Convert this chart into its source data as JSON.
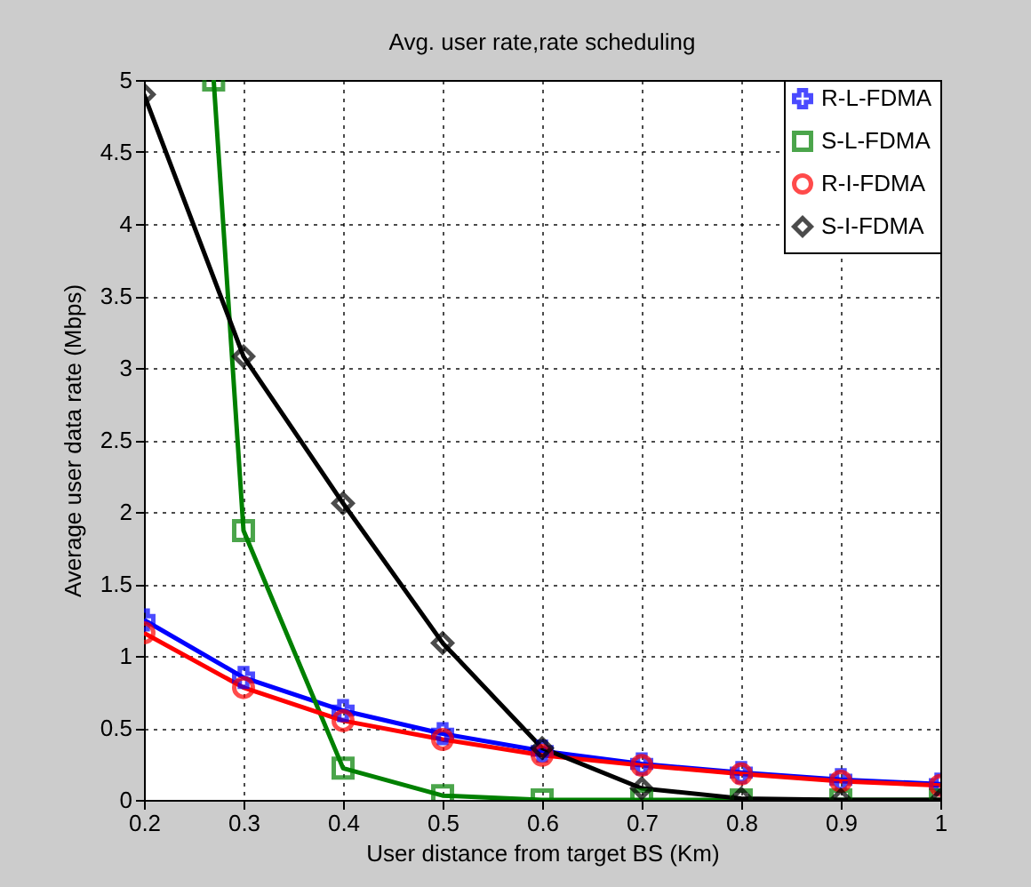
{
  "chart_data": {
    "type": "line",
    "title": "Avg. user rate,rate scheduling",
    "xlabel": "User distance from target BS (Km)",
    "ylabel": "Average user data rate (Mbps)",
    "x": [
      0.2,
      0.3,
      0.4,
      0.5,
      0.6,
      0.7,
      0.8,
      0.9,
      1.0
    ],
    "series": [
      {
        "name": "R-L-FDMA",
        "color": "#0000ff",
        "marker": "cross",
        "values": [
          1.25,
          0.85,
          0.62,
          0.46,
          0.34,
          0.25,
          0.19,
          0.14,
          0.11
        ]
      },
      {
        "name": "S-L-FDMA",
        "color": "#008000",
        "marker": "square",
        "x": [
          0.27,
          0.3,
          0.4,
          0.5,
          0.6,
          0.7,
          0.8,
          0.9,
          1.0
        ],
        "values": [
          5,
          1.87,
          0.22,
          0.03,
          0,
          0,
          0,
          0,
          0
        ]
      },
      {
        "name": "R-I-FDMA",
        "color": "#ff0000",
        "marker": "circle",
        "values": [
          1.16,
          0.78,
          0.55,
          0.42,
          0.31,
          0.24,
          0.18,
          0.13,
          0.1
        ]
      },
      {
        "name": "S-I-FDMA",
        "color": "#000000",
        "marker": "diamond",
        "values": [
          4.9,
          3.08,
          2.06,
          1.09,
          0.36,
          0.08,
          0.01,
          0,
          0
        ]
      }
    ],
    "xlim": [
      0.2,
      1
    ],
    "xticks": [
      {
        "value": 0.2,
        "label": "0.2"
      },
      {
        "value": 0.3,
        "label": "0.3"
      },
      {
        "value": 0.4,
        "label": "0.4"
      },
      {
        "value": 0.5,
        "label": "0.5"
      },
      {
        "value": 0.6,
        "label": "0.6"
      },
      {
        "value": 0.7,
        "label": "0.7"
      },
      {
        "value": 0.8,
        "label": "0.8"
      },
      {
        "value": 0.9,
        "label": "0.9"
      },
      1
    ],
    "ylim": [
      0,
      5
    ],
    "yticks": [
      0,
      0.5,
      1,
      1.5,
      2,
      2.5,
      3,
      3.5,
      4,
      4.5,
      5
    ],
    "grid": true,
    "legend": "top right",
    "line_style": "solid"
  }
}
